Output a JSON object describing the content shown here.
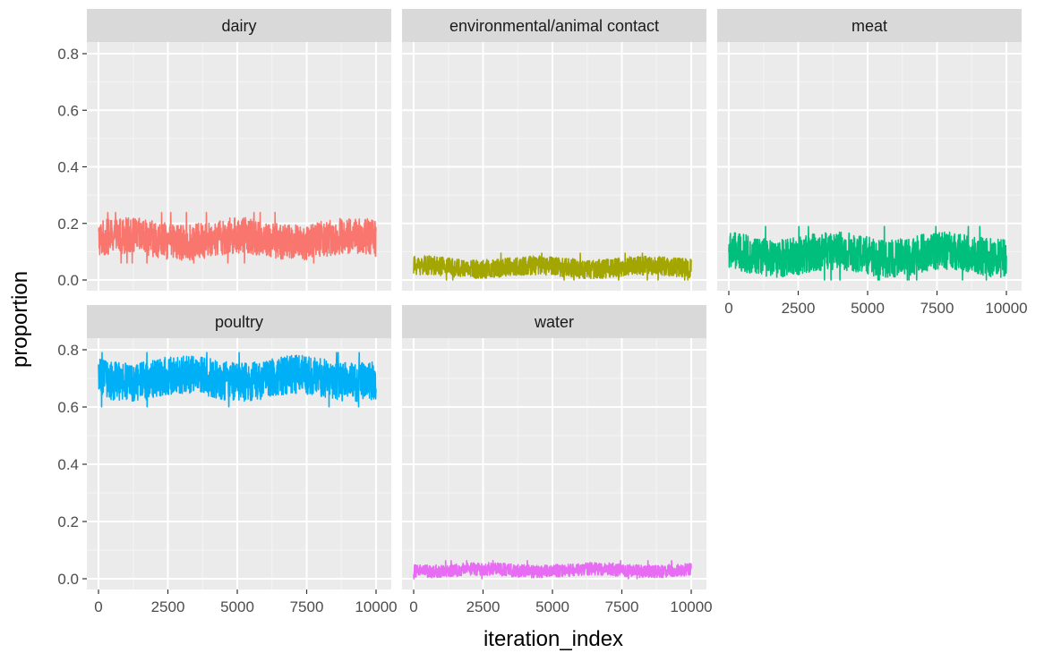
{
  "chart_data": {
    "type": "line",
    "xlabel": "iteration_index",
    "ylabel": "proportion",
    "xlim": [
      0,
      10000
    ],
    "ylim": [
      0,
      0.8
    ],
    "x_ticks": [
      0,
      2500,
      5000,
      7500,
      10000
    ],
    "x_tick_labels": [
      "0",
      "2500",
      "5000",
      "7500",
      "10000"
    ],
    "y_ticks": [
      0.0,
      0.2,
      0.4,
      0.6,
      0.8
    ],
    "y_tick_labels": [
      "0.0",
      "0.2",
      "0.4",
      "0.6",
      "0.8"
    ],
    "grid": true,
    "legend": "none",
    "facets": [
      {
        "label": "dairy",
        "color": "#F8766D",
        "mean": 0.145,
        "low": 0.06,
        "high": 0.24
      },
      {
        "label": "environmental/animal contact",
        "color": "#A3A500",
        "mean": 0.045,
        "low": 0.0,
        "high": 0.13
      },
      {
        "label": "meat",
        "color": "#00BF7D",
        "mean": 0.09,
        "low": 0.0,
        "high": 0.2
      },
      {
        "label": "poultry",
        "color": "#00B0F6",
        "mean": 0.7,
        "low": 0.59,
        "high": 0.79
      },
      {
        "label": "water",
        "color": "#E76BF3",
        "mean": 0.03,
        "low": 0.0,
        "high": 0.09
      }
    ]
  }
}
